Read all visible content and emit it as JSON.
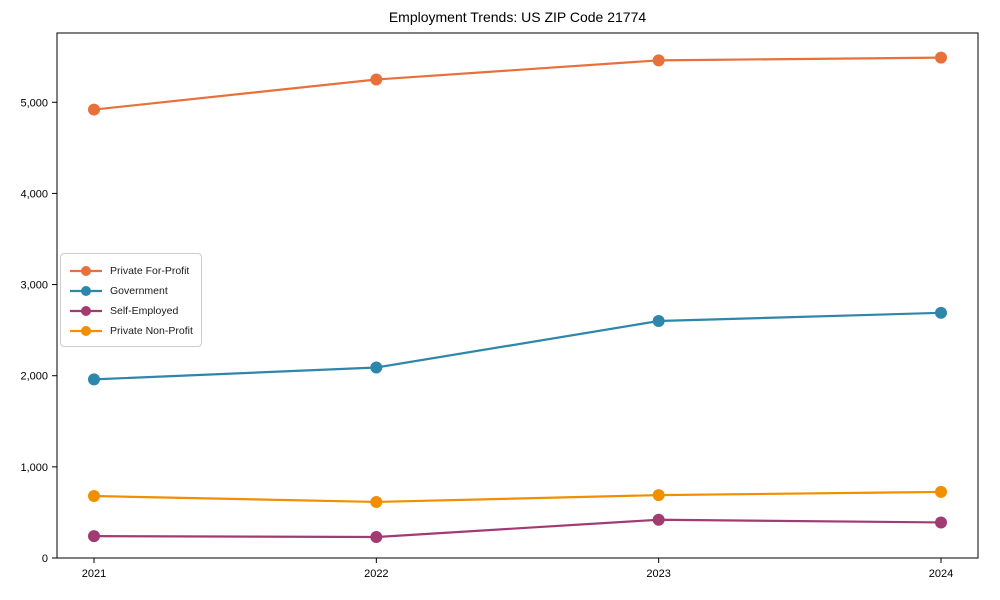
{
  "chart_data": {
    "type": "line",
    "title": "Employment Trends: US ZIP Code 21774",
    "categories": [
      "2021",
      "2022",
      "2023",
      "2024"
    ],
    "series": [
      {
        "name": "Private For-Profit",
        "color": "#E8703A",
        "values": [
          4920,
          5250,
          5460,
          5490
        ]
      },
      {
        "name": "Government",
        "color": "#2E86AB",
        "values": [
          1960,
          2090,
          2600,
          2690
        ]
      },
      {
        "name": "Self-Employed",
        "color": "#A23B72",
        "values": [
          240,
          230,
          420,
          390
        ]
      },
      {
        "name": "Private Non-Profit",
        "color": "#F18F01",
        "values": [
          680,
          615,
          690,
          725
        ]
      }
    ],
    "xlabel": "",
    "ylabel": "",
    "ylim": [
      0,
      5760
    ],
    "yticks": [
      0,
      1000,
      2000,
      3000,
      4000,
      5000
    ],
    "ytick_labels": [
      "0",
      "1,000",
      "2,000",
      "3,000",
      "4,000",
      "5,000"
    ],
    "grid": false,
    "legend_position": "center-left",
    "marker": "circle",
    "axis_color": "#000000",
    "background_color": "#ffffff"
  }
}
